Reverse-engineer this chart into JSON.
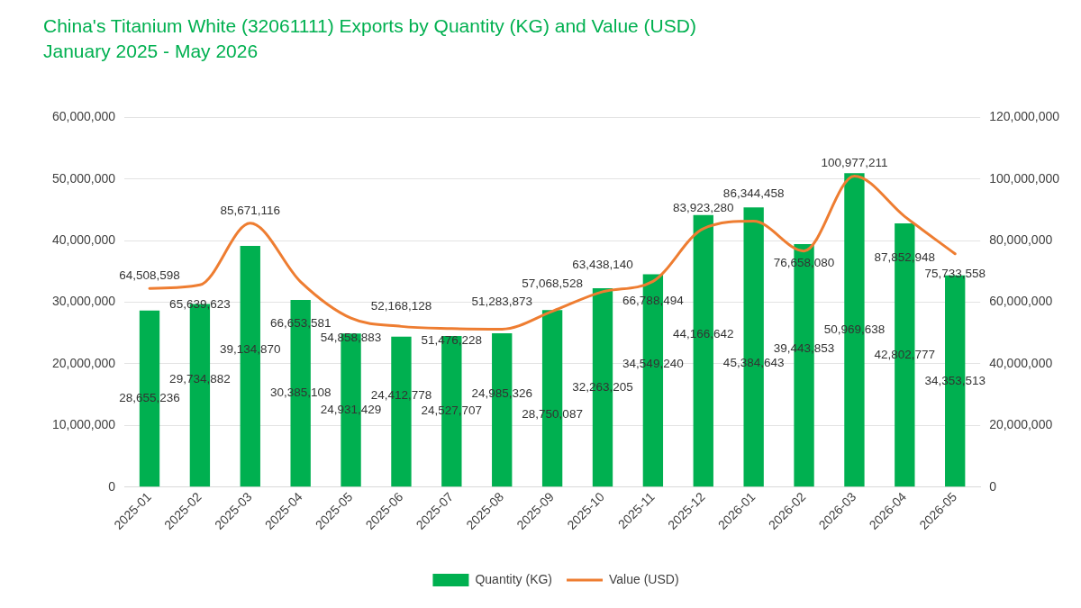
{
  "chart_data": {
    "type": "bar",
    "title": "China's Titanium White (32061111) Exports by Quantity (KG) and Value (USD)",
    "subtitle": "January 2025 - May 2026",
    "categories": [
      "2025-01",
      "2025-02",
      "2025-03",
      "2025-04",
      "2025-05",
      "2025-06",
      "2025-07",
      "2025-08",
      "2025-09",
      "2025-10",
      "2025-11",
      "2025-12",
      "2026-01",
      "2026-02",
      "2026-03",
      "2026-04",
      "2026-05"
    ],
    "series": [
      {
        "name": "Quantity (KG)",
        "color": "#00b050",
        "values": [
          28655236,
          29734882,
          39134870,
          30385108,
          24931429,
          24412778,
          24527707,
          24985326,
          28750087,
          32263205,
          34549240,
          44166642,
          45384643,
          39443853,
          50969638,
          42802777,
          34353513
        ],
        "value_labels": [
          "28,655,236",
          "29,734,882",
          "39,134,870",
          "30,385,108",
          "24,931,429",
          "24,412,778",
          "24,527,707",
          "24,985,326",
          "28,750,087",
          "32,263,205",
          "34,549,240",
          "44,166,642",
          "45,384,643",
          "39,443,853",
          "50,969,638",
          "42,802,777",
          "34,353,513"
        ]
      },
      {
        "name": "Value (USD)",
        "type": "line",
        "axis": "y2",
        "color": "#ee7d31",
        "values": [
          64508598,
          65639623,
          85671116,
          66653581,
          54858883,
          52168128,
          51476228,
          51283873,
          57068528,
          63438140,
          66788494,
          83923280,
          86344458,
          76658080,
          100977211,
          87852948,
          75733558
        ],
        "value_labels": [
          "64,508,598",
          "65,639,623",
          "85,671,116",
          "66,653,581",
          "54,858,883",
          "52,168,128",
          "51,476,228",
          "51,283,873",
          "57,068,528",
          "63,438,140",
          "66,788,494",
          "83,923,280",
          "86,344,458",
          "76,658,080",
          "100,977,211",
          "87,852,948",
          "75,733,558"
        ]
      }
    ],
    "ylim": [
      0,
      60000000
    ],
    "yticks": [
      {
        "value": 0,
        "label": "0"
      },
      {
        "value": 10000000,
        "label": "10,000,000"
      },
      {
        "value": 20000000,
        "label": "20,000,000"
      },
      {
        "value": 30000000,
        "label": "30,000,000"
      },
      {
        "value": 40000000,
        "label": "40,000,000"
      },
      {
        "value": 50000000,
        "label": "50,000,000"
      },
      {
        "value": 60000000,
        "label": "60,000,000"
      }
    ],
    "y2lim": [
      0,
      120000000
    ],
    "y2ticks": [
      {
        "value": 0,
        "label": "0"
      },
      {
        "value": 20000000,
        "label": "20,000,000"
      },
      {
        "value": 40000000,
        "label": "40,000,000"
      },
      {
        "value": 60000000,
        "label": "60,000,000"
      },
      {
        "value": 80000000,
        "label": "80,000,000"
      },
      {
        "value": 100000000,
        "label": "100,000,000"
      },
      {
        "value": 120000000,
        "label": "120,000,000"
      }
    ],
    "grid": "y",
    "legend": "bottom",
    "marker": "none",
    "line_style": "solid"
  }
}
